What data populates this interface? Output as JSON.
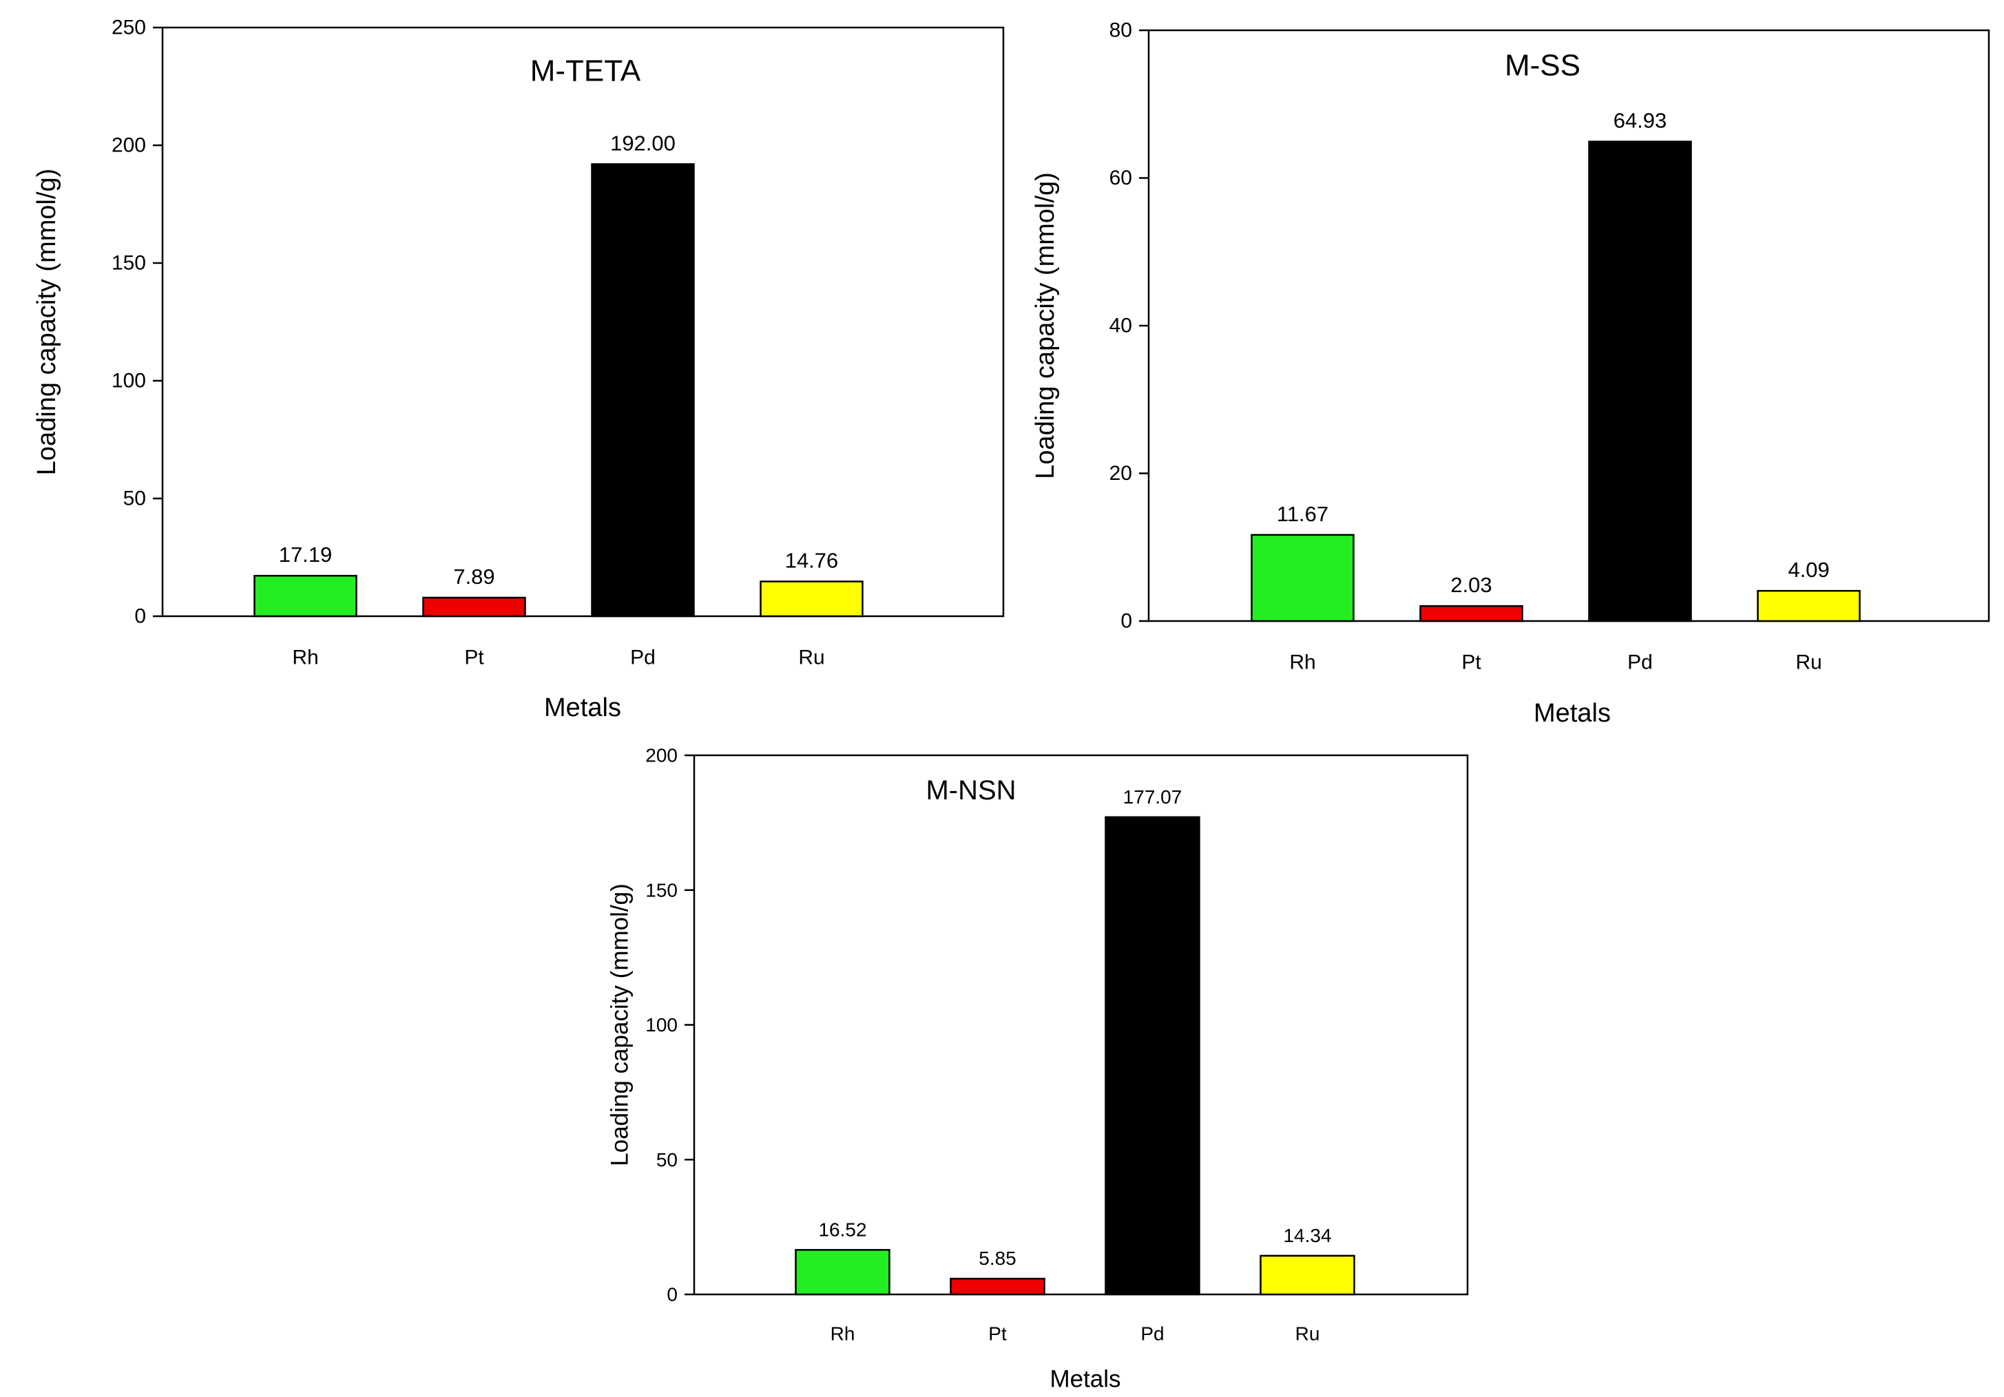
{
  "chart_data": [
    {
      "type": "bar",
      "title": "M-TETA",
      "xlabel": "Metals",
      "ylabel": "Loading capacity (mmol/g)",
      "categories": [
        "Rh",
        "Pt",
        "Pd",
        "Ru"
      ],
      "values": [
        17.19,
        7.89,
        192.0,
        14.76
      ],
      "data_labels": [
        "17.19",
        "7.89",
        "192.00",
        "14.76"
      ],
      "colors": [
        "#22ee22",
        "#ee0000",
        "#000000",
        "#ffff00"
      ],
      "ylim": [
        0,
        250
      ],
      "yticks": [
        0,
        50,
        100,
        150,
        200,
        250
      ],
      "grid": false,
      "legend": "none"
    },
    {
      "type": "bar",
      "title": "M-SS",
      "xlabel": "Metals",
      "ylabel": "Loading capacity (mmol/g)",
      "categories": [
        "Rh",
        "Pt",
        "Pd",
        "Ru"
      ],
      "values": [
        11.67,
        2.03,
        64.93,
        4.09
      ],
      "data_labels": [
        "11.67",
        "2.03",
        "64.93",
        "4.09"
      ],
      "colors": [
        "#22ee22",
        "#ee0000",
        "#000000",
        "#ffff00"
      ],
      "ylim": [
        0,
        80
      ],
      "yticks": [
        0,
        20,
        40,
        60,
        80
      ],
      "grid": false,
      "legend": "none"
    },
    {
      "type": "bar",
      "title": "M-NSN",
      "xlabel": "Metals",
      "ylabel": "Loading capacity (mmol/g)",
      "categories": [
        "Rh",
        "Pt",
        "Pd",
        "Ru"
      ],
      "values": [
        16.52,
        5.85,
        177.07,
        14.34
      ],
      "data_labels": [
        "16.52",
        "5.85",
        "177.07",
        "14.34"
      ],
      "colors": [
        "#22ee22",
        "#ee0000",
        "#000000",
        "#ffff00"
      ],
      "ylim": [
        0,
        200
      ],
      "yticks": [
        0,
        50,
        100,
        150,
        200
      ],
      "grid": false,
      "legend": "none"
    }
  ]
}
